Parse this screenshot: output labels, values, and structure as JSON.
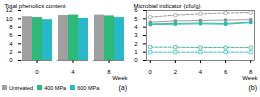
{
  "chart_data": [
    {
      "type": "bar",
      "categories": [
        "0",
        "4",
        "8"
      ],
      "x_label": "Week",
      "y_label": "Total phenolics content",
      "series": [
        {
          "name": "Untreated",
          "color": "#a0a0a0",
          "values": [
            10.5,
            10.8,
            10.9
          ]
        },
        {
          "name": "400 MPa",
          "color": "#2eb87a",
          "values": [
            10.3,
            10.9,
            10.7
          ]
        },
        {
          "name": "600 MPa",
          "color": "#29b8c8",
          "values": [
            9.8,
            10.1,
            10.3
          ]
        }
      ],
      "ylim": [
        0,
        12
      ],
      "yticks": [
        0,
        2,
        4,
        6,
        8,
        10,
        12
      ],
      "legend": "bottom",
      "annotation": "(a)"
    },
    {
      "type": "line",
      "x": [
        0,
        2,
        4,
        6,
        8
      ],
      "xlim": [
        -0.3,
        8.3
      ],
      "xticks": [
        0,
        2,
        4,
        6,
        8
      ],
      "x_label": "Week",
      "y_label": "Microbial indicator (cfu/g)",
      "series": [
        {
          "color": "#909090",
          "marker": "square",
          "line_style": "solid",
          "values": [
            4.6,
            4.75,
            4.8,
            4.85,
            4.9
          ]
        },
        {
          "color": "#2eb87a",
          "marker": "square",
          "line_style": "solid",
          "values": [
            4.4,
            4.45,
            4.5,
            4.45,
            4.6
          ]
        },
        {
          "color": "#29b8c8",
          "marker": "square",
          "line_style": "solid",
          "values": [
            4.3,
            4.35,
            4.4,
            4.35,
            4.55
          ]
        },
        {
          "color": "#909090",
          "marker": "open-circle",
          "line_style": "dashed",
          "values": [
            5.2,
            5.45,
            5.6,
            5.7,
            5.75
          ]
        },
        {
          "color": "#2eb87a",
          "marker": "open-square",
          "line_style": "dashed",
          "values": [
            1.6,
            1.6,
            1.55,
            1.55,
            1.55
          ]
        },
        {
          "color": "#29b8c8",
          "marker": "open-square",
          "line_style": "dashed",
          "values": [
            1.0,
            1.0,
            1.0,
            1.0,
            1.0
          ]
        }
      ],
      "ylim": [
        0,
        6
      ],
      "yticks": [
        0,
        1,
        2,
        3,
        4,
        5,
        6
      ],
      "annotation": "(b)"
    }
  ]
}
